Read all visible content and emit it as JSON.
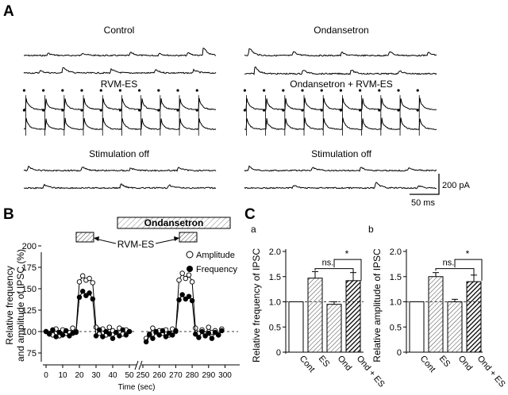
{
  "panel_a": {
    "label": "A",
    "conditions": [
      {
        "name": "Control"
      },
      {
        "name": "Ondansetron"
      },
      {
        "name": "RVM-ES"
      },
      {
        "name": "Ondansetron + RVM-ES"
      },
      {
        "name": "Stimulation off"
      },
      {
        "name": "Stimulation off"
      }
    ],
    "scale_bar": {
      "current": "200 pA",
      "time": "50 ms"
    }
  },
  "panel_b": {
    "label": "B",
    "drug_bar": "Ondansetron",
    "stim_label": "RVM-ES",
    "legend": [
      "Amplitude",
      "Frequency"
    ]
  },
  "panel_c": {
    "label": "C",
    "sublabels": [
      "a",
      "b"
    ],
    "significance": [
      "ns.",
      "*"
    ]
  },
  "chart_data": [
    {
      "type": "line",
      "ylabel": "Relative frequency and amplitude of IPSC (%)",
      "xlabel": "Time (sec)",
      "ylim": [
        75,
        200
      ],
      "yticks": [
        75,
        100,
        125,
        150,
        175,
        200
      ],
      "xticks_left": [
        0,
        10,
        20,
        30,
        40,
        50
      ],
      "xticks_right": [
        250,
        260,
        270,
        280,
        290,
        300
      ],
      "axis_break": true,
      "series": [
        {
          "name": "Amplitude",
          "x": [
            0,
            2,
            4,
            6,
            8,
            10,
            12,
            14,
            16,
            18,
            20,
            22,
            24,
            26,
            28,
            30,
            32,
            34,
            36,
            38,
            40,
            42,
            44,
            46,
            48,
            50,
            252,
            254,
            256,
            258,
            260,
            262,
            264,
            266,
            268,
            270,
            272,
            274,
            276,
            278,
            280,
            282,
            284,
            286,
            288,
            290,
            292,
            294,
            296,
            298
          ],
          "values": [
            100,
            98,
            96,
            103,
            95,
            102,
            98,
            99,
            104,
            100,
            158,
            165,
            160,
            162,
            157,
            105,
            98,
            103,
            96,
            105,
            101,
            99,
            104,
            97,
            102,
            100,
            92,
            96,
            104,
            99,
            101,
            98,
            102,
            96,
            103,
            100,
            160,
            168,
            162,
            166,
            158,
            104,
            98,
            102,
            97,
            105,
            99,
            101,
            96,
            103
          ]
        },
        {
          "name": "Frequency",
          "x": [
            0,
            2,
            4,
            6,
            8,
            10,
            12,
            14,
            16,
            18,
            20,
            22,
            24,
            26,
            28,
            30,
            32,
            34,
            36,
            38,
            40,
            42,
            44,
            46,
            48,
            50,
            252,
            254,
            256,
            258,
            260,
            262,
            264,
            266,
            268,
            270,
            272,
            274,
            276,
            278,
            280,
            282,
            284,
            286,
            288,
            290,
            292,
            294,
            296,
            298
          ],
          "values": [
            100,
            97,
            102,
            94,
            99,
            96,
            101,
            95,
            98,
            99,
            140,
            147,
            142,
            145,
            138,
            95,
            102,
            94,
            100,
            97,
            92,
            99,
            95,
            102,
            96,
            100,
            88,
            97,
            92,
            100,
            96,
            101,
            94,
            98,
            96,
            101,
            137,
            143,
            138,
            141,
            136,
            97,
            93,
            100,
            95,
            98,
            92,
            99,
            96,
            101
          ]
        }
      ],
      "annotations": [
        "Ondansetron",
        "RVM-ES"
      ]
    },
    {
      "type": "bar",
      "ylabel": "Relative frequency of IPSC",
      "categories": [
        "Cont",
        "ES",
        "Ond",
        "Ond + ES"
      ],
      "values": [
        1.0,
        1.47,
        0.95,
        1.42
      ],
      "errors": [
        0,
        0.13,
        0.05,
        0.16
      ],
      "ylim": [
        0,
        2.0
      ],
      "yticks": [
        "0",
        "0.5",
        "1.0",
        "1.5",
        "2.0"
      ]
    },
    {
      "type": "bar",
      "ylabel": "Relative amplitude of IPSC",
      "categories": [
        "Cont",
        "ES",
        "Ond",
        "Ond + ES"
      ],
      "values": [
        1.0,
        1.5,
        1.0,
        1.4
      ],
      "errors": [
        0,
        0.08,
        0.05,
        0.13
      ],
      "ylim": [
        0,
        2.0
      ],
      "yticks": [
        "0",
        "0.5",
        "1.0",
        "1.5",
        "2.0"
      ]
    }
  ]
}
